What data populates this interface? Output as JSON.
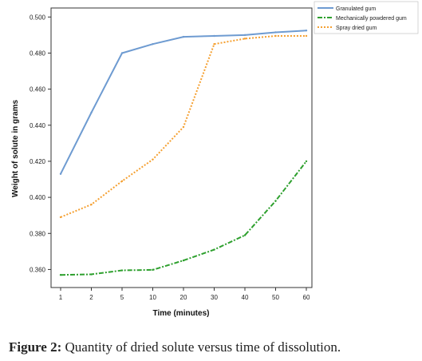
{
  "chart_data": {
    "type": "line",
    "categories": [
      "1",
      "2",
      "5",
      "10",
      "20",
      "30",
      "40",
      "50",
      "60"
    ],
    "xlabel": "Time (minutes)",
    "ylabel": "Weight of solute in grams",
    "ylim": [
      0.35,
      0.505
    ],
    "yticks": [
      "0.360",
      "0.380",
      "0.400",
      "0.420",
      "0.440",
      "0.460",
      "0.480",
      "0.500"
    ],
    "grid": false,
    "legend_position": "top-right",
    "series": [
      {
        "name": "Granulated gum",
        "color": "#6e9bd1",
        "style": "solid",
        "values": [
          0.413,
          0.447,
          0.48,
          0.485,
          0.489,
          0.4895,
          0.49,
          0.4915,
          0.4925
        ]
      },
      {
        "name": "Mechanically powdered gum",
        "color": "#2ea02e",
        "style": "dashdot",
        "values": [
          0.357,
          0.3573,
          0.3595,
          0.3598,
          0.365,
          0.371,
          0.379,
          0.398,
          0.42
        ]
      },
      {
        "name": "Spray dried gum",
        "color": "#f5a031",
        "style": "dotted",
        "values": [
          0.389,
          0.396,
          0.409,
          0.421,
          0.439,
          0.485,
          0.488,
          0.4895,
          0.4895
        ]
      }
    ]
  },
  "caption": {
    "label": "Figure 2:",
    "text": " Quantity of dried solute versus time of dissolution."
  }
}
